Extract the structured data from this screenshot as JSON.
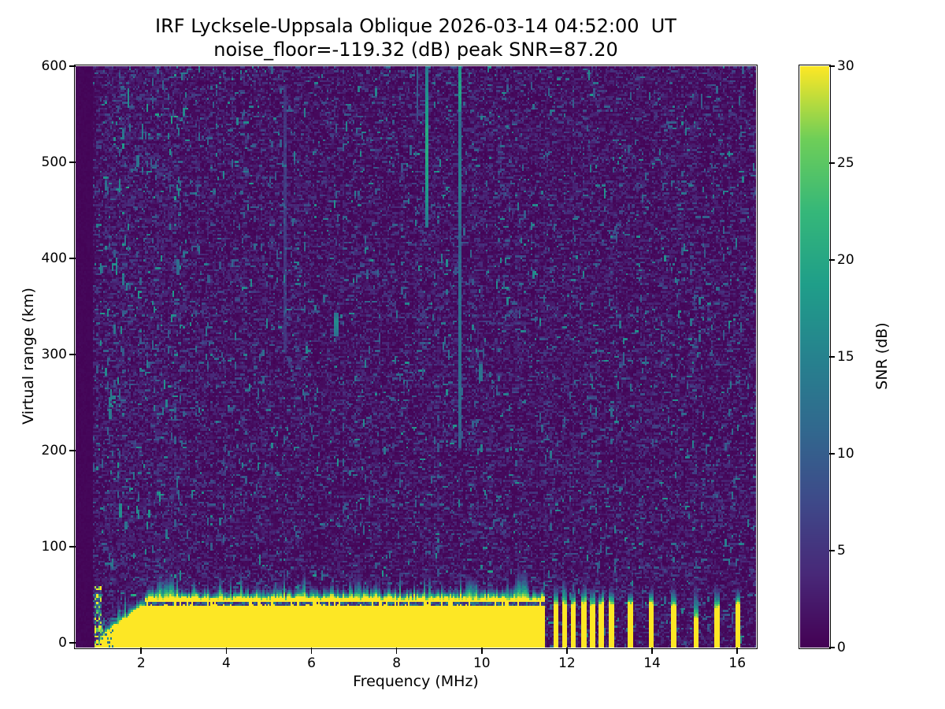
{
  "chart_data": {
    "type": "heatmap",
    "title": "IRF Lycksele-Uppsala Oblique 2026-03-14 04:52:00  UT",
    "subtitle": "noise_floor=-119.32 (dB) peak SNR=87.20",
    "station_pair": "Lycksele-Uppsala",
    "sounding_mode": "Oblique",
    "timestamp_ut": "2026-03-14 04:52:00",
    "noise_floor_db": -119.32,
    "peak_snr_db": 87.2,
    "x_axis": {
      "label": "Frequency (MHz)",
      "ticks": [
        2,
        4,
        6,
        8,
        10,
        12,
        14,
        16
      ],
      "range": [
        0.46,
        16.44
      ]
    },
    "y_axis": {
      "label": "Virtual range (km)",
      "ticks": [
        0,
        100,
        200,
        300,
        400,
        500,
        600
      ],
      "range": [
        -5,
        600
      ]
    },
    "colorbar": {
      "label": "SNR (dB)",
      "ticks": [
        0,
        5,
        10,
        15,
        20,
        25,
        30
      ],
      "range": [
        0,
        30
      ],
      "colormap": "viridis",
      "stops": [
        "#440154",
        "#482878",
        "#3e4989",
        "#31688e",
        "#26828e",
        "#1f9e89",
        "#35b779",
        "#6ece58",
        "#fde725"
      ]
    },
    "grid_on": false,
    "features": {
      "seed": 20260314,
      "grid": {
        "ncols": 393,
        "nrows": 295
      },
      "data_min_freq": 0.88,
      "echo_band": {
        "f_start": 0.92,
        "f_end": 11.46,
        "onset_f_end": 1.05,
        "ramp_f_end": 2.1,
        "ramp_start_km": 3,
        "ramp_end_km": 40,
        "main_top_km": 38.3,
        "gap_km": [
          38.6,
          41.2
        ],
        "gap_prob": 0.82,
        "second_layer_top_km": [
          44,
          49
        ],
        "fuzz_km": [
          6,
          16
        ],
        "spike_prob": 0.07,
        "spike_extra_km": [
          10,
          25
        ],
        "snr_saturated": 33
      },
      "fuzz_humps": [
        {
          "f": [
            2.38,
            2.78
          ],
          "extra_km": 16
        },
        {
          "f": [
            7.0,
            7.18
          ],
          "extra_km": 10
        },
        {
          "f": [
            9.6,
            9.88
          ],
          "extra_km": 12
        },
        {
          "f": [
            10.78,
            11.06
          ],
          "extra_km": 17
        }
      ],
      "rfi_stripes": [
        {
          "f": 11.73,
          "halfw": 0.062,
          "top_km": 40,
          "fuzz_km": 22
        },
        {
          "f": 11.947,
          "halfw": 0.062,
          "top_km": 41,
          "fuzz_km": 25
        },
        {
          "f": 12.163,
          "halfw": 0.062,
          "top_km": 40,
          "fuzz_km": 18
        },
        {
          "f": 12.38,
          "halfw": 0.062,
          "top_km": 41,
          "fuzz_km": 20
        },
        {
          "f": 12.597,
          "halfw": 0.062,
          "top_km": 40,
          "fuzz_km": 24
        },
        {
          "f": 12.813,
          "halfw": 0.062,
          "top_km": 41,
          "fuzz_km": 16
        },
        {
          "f": 13.03,
          "halfw": 0.062,
          "top_km": 40,
          "fuzz_km": 22
        },
        {
          "f": 13.48,
          "halfw": 0.058,
          "top_km": 40,
          "fuzz_km": 15
        },
        {
          "f": 13.98,
          "halfw": 0.058,
          "top_km": 41,
          "fuzz_km": 18
        },
        {
          "f": 14.5,
          "halfw": 0.058,
          "top_km": 38,
          "fuzz_km": 20
        },
        {
          "f": 15.03,
          "halfw": 0.058,
          "top_km": 25,
          "fuzz_km": 38
        },
        {
          "f": 15.52,
          "halfw": 0.058,
          "top_km": 37,
          "fuzz_km": 23
        },
        {
          "f": 16.0,
          "halfw": 0.058,
          "top_km": 41,
          "fuzz_km": 18
        }
      ],
      "interference_streaks": [
        {
          "f": 8.73,
          "halfw": 0.045,
          "top_km": 600,
          "bottom_km": 431,
          "snr_base": 12,
          "snr_amp": 7
        },
        {
          "f": 8.49,
          "halfw": 0.024,
          "top_km": 600,
          "bottom_km": 543,
          "snr_base": 6,
          "snr_amp": 2
        },
        {
          "f": 9.47,
          "halfw": 0.042,
          "top_km": 600,
          "bottom_km": 552,
          "snr_base": 15,
          "snr_amp": 3
        },
        {
          "f": 9.47,
          "halfw": 0.042,
          "top_km": 552,
          "bottom_km": 430,
          "snr_base": 10,
          "snr_amp": 3
        },
        {
          "f": 9.47,
          "halfw": 0.042,
          "top_km": 430,
          "bottom_km": 203,
          "snr_base": 9,
          "snr_amp": 2
        },
        {
          "f": 5.38,
          "halfw": 0.024,
          "top_km": 580,
          "bottom_km": 300,
          "snr_base": 3.6,
          "snr_amp": 1.2
        },
        {
          "f": 6.58,
          "halfw": 0.042,
          "top_km": 344,
          "bottom_km": 320,
          "snr_base": 11,
          "snr_amp": 3
        }
      ],
      "hot_noise_region": {
        "f": [
          1.15,
          2.95
        ]
      },
      "hot_dashes": [
        {
          "f": 1.7,
          "km": 578,
          "len": 22,
          "snr": 15
        },
        {
          "f": 2.03,
          "km": 540,
          "len": 16,
          "snr": 13
        },
        {
          "f": 1.92,
          "km": 508,
          "len": 12,
          "snr": 12
        },
        {
          "f": 1.5,
          "km": 483,
          "len": 14,
          "snr": 14
        },
        {
          "f": 1.62,
          "km": 424,
          "len": 10,
          "snr": 12
        },
        {
          "f": 1.42,
          "km": 400,
          "len": 14,
          "snr": 13
        },
        {
          "f": 2.86,
          "km": 398,
          "len": 16,
          "snr": 11
        },
        {
          "f": 1.38,
          "km": 332,
          "len": 10,
          "snr": 12
        },
        {
          "f": 1.27,
          "km": 243,
          "len": 10,
          "snr": 13
        },
        {
          "f": 1.52,
          "km": 145,
          "len": 14,
          "snr": 15
        },
        {
          "f": 1.64,
          "km": 126,
          "len": 8,
          "snr": 12
        },
        {
          "f": 9.97,
          "km": 290,
          "len": 18,
          "snr": 12
        },
        {
          "f": 7.35,
          "km": 152,
          "len": 10,
          "snr": 10
        }
      ]
    }
  }
}
